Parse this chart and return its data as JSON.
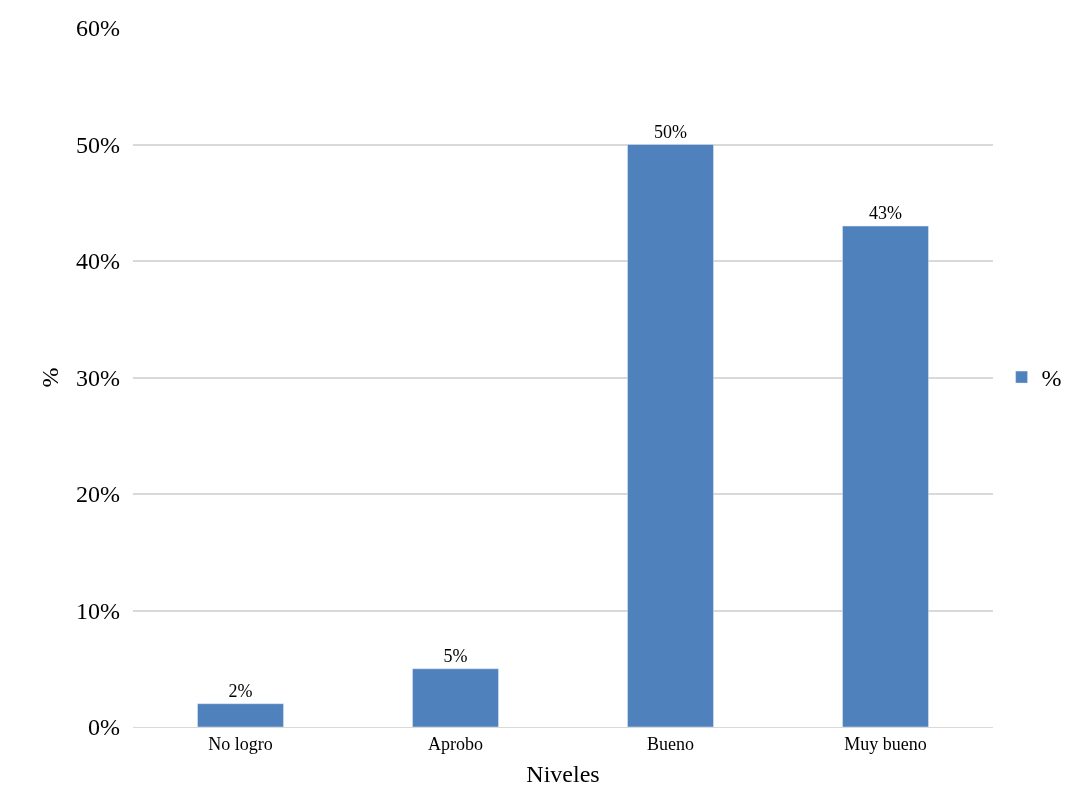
{
  "chart_data": {
    "type": "bar",
    "xlabel": "Niveles",
    "ylabel": "%",
    "categories": [
      "No logro",
      "Aprobo",
      "Bueno",
      "Muy bueno"
    ],
    "series": [
      {
        "name": "%",
        "color": "#4f81bd",
        "values": [
          2,
          5,
          50,
          43
        ],
        "value_labels": [
          "2%",
          "5%",
          "50%",
          "43%"
        ]
      }
    ],
    "ylim": [
      0,
      60
    ],
    "yticks": [
      {
        "value": 0,
        "label": "0%"
      },
      {
        "value": 10,
        "label": "10%"
      },
      {
        "value": 20,
        "label": "20%"
      },
      {
        "value": 30,
        "label": "30%"
      },
      {
        "value": 40,
        "label": "40%"
      },
      {
        "value": 50,
        "label": "50%"
      },
      {
        "value": 60,
        "label": "60%"
      }
    ],
    "grid": "y",
    "legend": "right"
  }
}
